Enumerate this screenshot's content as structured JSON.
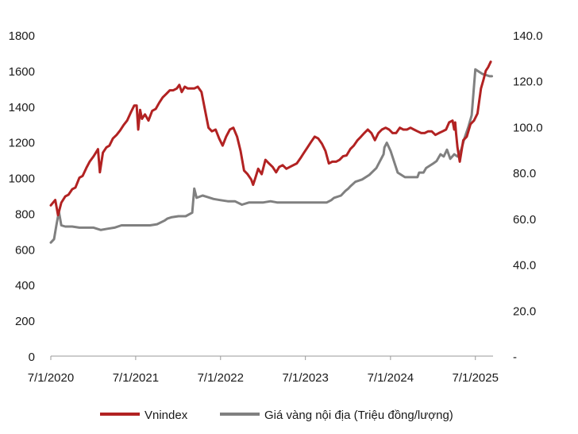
{
  "chart_data": {
    "type": "line",
    "title": "",
    "xlabel": "",
    "ylabel_left": "",
    "ylabel_right": "",
    "x_tick_labels": [
      "7/1/2020",
      "7/1/2021",
      "7/1/2022",
      "7/1/2023",
      "7/1/2024",
      "7/1/2025"
    ],
    "x_range": [
      "2020-07-01",
      "2025-09-15"
    ],
    "y_left": {
      "range": [
        0,
        1800
      ],
      "ticks": [
        "0",
        "200",
        "400",
        "600",
        "800",
        "1000",
        "1200",
        "1400",
        "1600",
        "1800"
      ]
    },
    "y_right": {
      "range": [
        0,
        140
      ],
      "ticks": [
        "-",
        "20.0",
        "40.0",
        "60.0",
        "80.0",
        "100.0",
        "120.0",
        "140.0"
      ]
    },
    "grid": false,
    "legend": {
      "position": "bottom"
    },
    "series": [
      {
        "name": "Vnindex",
        "axis": "left",
        "color": "#b22222",
        "x": [
          "2020-07-01",
          "2020-07-20",
          "2020-08-01",
          "2020-08-15",
          "2020-09-01",
          "2020-09-15",
          "2020-10-01",
          "2020-10-15",
          "2020-11-01",
          "2020-11-15",
          "2020-12-01",
          "2020-12-15",
          "2021-01-01",
          "2021-01-20",
          "2021-01-28",
          "2021-02-10",
          "2021-02-25",
          "2021-03-10",
          "2021-03-25",
          "2021-04-10",
          "2021-04-25",
          "2021-05-10",
          "2021-05-25",
          "2021-06-10",
          "2021-06-25",
          "2021-07-05",
          "2021-07-12",
          "2021-07-20",
          "2021-07-28",
          "2021-08-10",
          "2021-08-25",
          "2021-09-10",
          "2021-09-25",
          "2021-10-10",
          "2021-10-25",
          "2021-11-10",
          "2021-11-25",
          "2021-12-10",
          "2021-12-25",
          "2022-01-05",
          "2022-01-15",
          "2022-01-28",
          "2022-02-10",
          "2022-02-25",
          "2022-03-10",
          "2022-03-25",
          "2022-04-10",
          "2022-04-25",
          "2022-05-10",
          "2022-05-25",
          "2022-06-10",
          "2022-06-25",
          "2022-07-10",
          "2022-07-25",
          "2022-08-10",
          "2022-08-25",
          "2022-09-10",
          "2022-09-25",
          "2022-10-10",
          "2022-10-25",
          "2022-11-10",
          "2022-11-18",
          "2022-11-28",
          "2022-12-10",
          "2022-12-25",
          "2023-01-10",
          "2023-01-25",
          "2023-02-10",
          "2023-02-25",
          "2023-03-10",
          "2023-03-25",
          "2023-04-10",
          "2023-04-25",
          "2023-05-10",
          "2023-05-25",
          "2023-06-10",
          "2023-06-25",
          "2023-07-10",
          "2023-07-25",
          "2023-08-10",
          "2023-08-25",
          "2023-09-10",
          "2023-09-25",
          "2023-10-10",
          "2023-10-25",
          "2023-11-10",
          "2023-11-25",
          "2023-12-10",
          "2023-12-25",
          "2024-01-10",
          "2024-01-25",
          "2024-02-10",
          "2024-02-25",
          "2024-03-10",
          "2024-03-25",
          "2024-04-10",
          "2024-04-25",
          "2024-05-10",
          "2024-05-25",
          "2024-06-10",
          "2024-06-25",
          "2024-07-10",
          "2024-07-25",
          "2024-08-10",
          "2024-08-25",
          "2024-09-10",
          "2024-09-25",
          "2024-10-10",
          "2024-10-25",
          "2024-11-10",
          "2024-11-25",
          "2024-12-10",
          "2024-12-25",
          "2025-01-10",
          "2025-01-25",
          "2025-02-10",
          "2025-02-25",
          "2025-03-10",
          "2025-03-25",
          "2025-04-01",
          "2025-04-05",
          "2025-04-09",
          "2025-04-15",
          "2025-04-25",
          "2025-05-10",
          "2025-05-25",
          "2025-06-10",
          "2025-06-25",
          "2025-07-10",
          "2025-07-25",
          "2025-08-05",
          "2025-08-15",
          "2025-08-25",
          "2025-09-05"
        ],
        "values": [
          845,
          875,
          790,
          860,
          895,
          905,
          935,
          945,
          1000,
          1010,
          1055,
          1090,
          1120,
          1160,
          1030,
          1140,
          1170,
          1180,
          1220,
          1240,
          1265,
          1295,
          1320,
          1365,
          1405,
          1405,
          1270,
          1380,
          1330,
          1355,
          1320,
          1375,
          1385,
          1420,
          1450,
          1470,
          1490,
          1490,
          1500,
          1520,
          1480,
          1510,
          1500,
          1500,
          1500,
          1510,
          1480,
          1380,
          1280,
          1260,
          1270,
          1220,
          1180,
          1230,
          1270,
          1280,
          1230,
          1150,
          1040,
          1020,
          990,
          960,
          1000,
          1050,
          1020,
          1100,
          1080,
          1060,
          1030,
          1060,
          1070,
          1050,
          1060,
          1070,
          1080,
          1110,
          1140,
          1170,
          1200,
          1230,
          1220,
          1190,
          1150,
          1080,
          1090,
          1090,
          1100,
          1120,
          1125,
          1160,
          1180,
          1210,
          1230,
          1250,
          1270,
          1250,
          1210,
          1250,
          1270,
          1280,
          1270,
          1250,
          1250,
          1280,
          1270,
          1270,
          1280,
          1270,
          1260,
          1250,
          1250,
          1260,
          1260,
          1240,
          1250,
          1260,
          1270,
          1310,
          1320,
          1270,
          1310,
          1250,
          1170,
          1090,
          1210,
          1230,
          1300,
          1320,
          1360,
          1500,
          1550,
          1600,
          1620,
          1650
        ]
      },
      {
        "name": "Giá vàng nội địa (Triệu đồng/lượng)",
        "axis": "right",
        "color": "#808080",
        "x": [
          "2020-07-01",
          "2020-07-15",
          "2020-07-25",
          "2020-08-05",
          "2020-08-15",
          "2020-09-01",
          "2020-10-01",
          "2020-11-01",
          "2020-12-01",
          "2021-01-01",
          "2021-02-01",
          "2021-03-01",
          "2021-04-01",
          "2021-05-01",
          "2021-06-01",
          "2021-07-01",
          "2021-08-01",
          "2021-09-01",
          "2021-10-01",
          "2021-11-01",
          "2021-11-15",
          "2021-12-01",
          "2022-01-01",
          "2022-02-01",
          "2022-03-01",
          "2022-03-10",
          "2022-03-20",
          "2022-04-15",
          "2022-05-01",
          "2022-06-01",
          "2022-07-01",
          "2022-08-01",
          "2022-09-01",
          "2022-10-01",
          "2022-11-01",
          "2022-12-01",
          "2023-01-01",
          "2023-02-01",
          "2023-03-01",
          "2023-04-01",
          "2023-05-01",
          "2023-06-01",
          "2023-07-01",
          "2023-08-01",
          "2023-09-01",
          "2023-10-01",
          "2023-10-20",
          "2023-11-01",
          "2023-12-01",
          "2023-12-20",
          "2024-01-01",
          "2024-01-10",
          "2024-02-01",
          "2024-03-01",
          "2024-04-01",
          "2024-05-01",
          "2024-06-01",
          "2024-06-05",
          "2024-06-15",
          "2024-07-01",
          "2024-08-01",
          "2024-09-01",
          "2024-10-01",
          "2024-10-15",
          "2024-10-25",
          "2024-11-01",
          "2024-11-20",
          "2024-12-01",
          "2025-01-01",
          "2025-01-15",
          "2025-02-01",
          "2025-02-15",
          "2025-03-01",
          "2025-03-15",
          "2025-04-01",
          "2025-04-15",
          "2025-05-01",
          "2025-05-15",
          "2025-06-01",
          "2025-06-15",
          "2025-07-01",
          "2025-08-01",
          "2025-09-01",
          "2025-09-10"
        ],
        "values": [
          49.5,
          51,
          57,
          63,
          57,
          56.5,
          56.5,
          56,
          56,
          56,
          55,
          55.5,
          56,
          57,
          57,
          57,
          57,
          57,
          57.5,
          59,
          60,
          60.5,
          61,
          61,
          62.5,
          73,
          69,
          70,
          69.5,
          68.5,
          68,
          67.5,
          67.5,
          66,
          67,
          67,
          67,
          67.5,
          67,
          67,
          67,
          67,
          67,
          67,
          67,
          67,
          68,
          69,
          70,
          72,
          73,
          74,
          76,
          77,
          79,
          82,
          88,
          91,
          93,
          89.5,
          80,
          78,
          78,
          78,
          78,
          80,
          80,
          82,
          84,
          85,
          88,
          87,
          90,
          86,
          88,
          87,
          90,
          95,
          100,
          105,
          125,
          123,
          122,
          122
        ]
      }
    ]
  }
}
